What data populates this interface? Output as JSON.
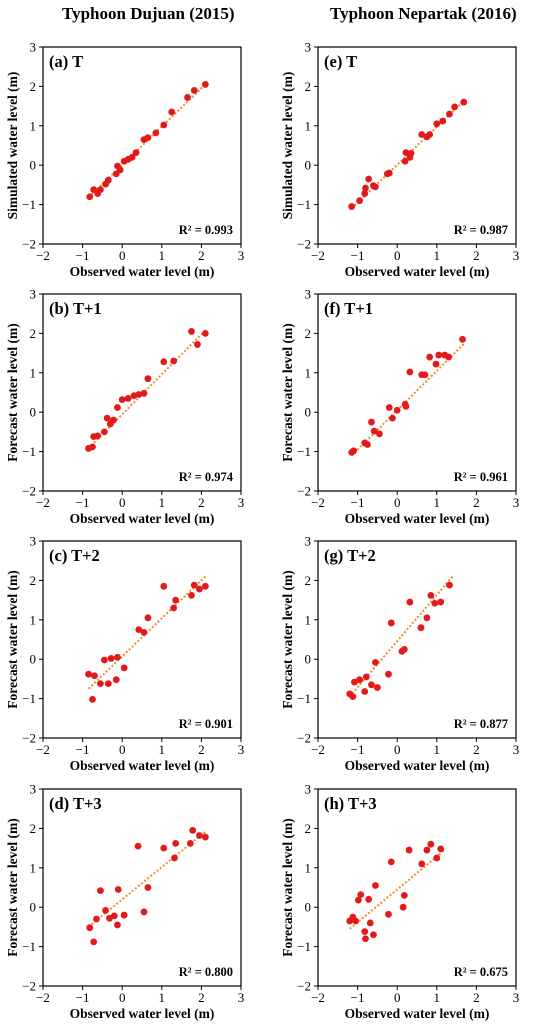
{
  "column_titles": [
    "Typhoon Dujuan (2015)",
    "Typhoon Nepartak (2016)"
  ],
  "style": {
    "point_color": "#e31a1c",
    "fit_color": "#f28c28"
  },
  "chart_data": [
    {
      "type": "scatter",
      "panel": "(a) T",
      "xlabel": "Observed water level (m)",
      "ylabel": "Simulated water level (m)",
      "xlim": [
        -2,
        3
      ],
      "ylim": [
        -2,
        3
      ],
      "xticks": [
        -2,
        -1,
        0,
        1,
        2,
        3
      ],
      "yticks": [
        -2,
        -1,
        0,
        1,
        2,
        3
      ],
      "r2_label": "R² = 0.993",
      "fit": {
        "x": [
          -0.85,
          2.1
        ],
        "y": [
          -0.82,
          2.05
        ]
      },
      "points": [
        [
          -0.82,
          -0.8
        ],
        [
          -0.72,
          -0.62
        ],
        [
          -0.62,
          -0.72
        ],
        [
          -0.55,
          -0.62
        ],
        [
          -0.42,
          -0.48
        ],
        [
          -0.35,
          -0.38
        ],
        [
          -0.15,
          -0.22
        ],
        [
          -0.12,
          -0.02
        ],
        [
          -0.05,
          -0.12
        ],
        [
          0.05,
          0.1
        ],
        [
          0.15,
          0.15
        ],
        [
          0.25,
          0.2
        ],
        [
          0.35,
          0.32
        ],
        [
          0.55,
          0.65
        ],
        [
          0.65,
          0.7
        ],
        [
          0.85,
          0.82
        ],
        [
          1.05,
          1.02
        ],
        [
          1.25,
          1.35
        ],
        [
          1.65,
          1.72
        ],
        [
          1.82,
          1.9
        ],
        [
          2.1,
          2.05
        ]
      ]
    },
    {
      "type": "scatter",
      "panel": "(b) T+1",
      "xlabel": "Observed water level (m)",
      "ylabel": "Forecast water level (m)",
      "xlim": [
        -2,
        3
      ],
      "ylim": [
        -2,
        3
      ],
      "xticks": [
        -2,
        -1,
        0,
        1,
        2,
        3
      ],
      "yticks": [
        -2,
        -1,
        0,
        1,
        2,
        3
      ],
      "r2_label": "R² = 0.974",
      "fit": {
        "x": [
          -0.85,
          2.1
        ],
        "y": [
          -0.92,
          2.08
        ]
      },
      "points": [
        [
          -0.85,
          -0.92
        ],
        [
          -0.75,
          -0.88
        ],
        [
          -0.72,
          -0.62
        ],
        [
          -0.62,
          -0.6
        ],
        [
          -0.45,
          -0.5
        ],
        [
          -0.38,
          -0.15
        ],
        [
          -0.3,
          -0.3
        ],
        [
          -0.22,
          -0.2
        ],
        [
          -0.12,
          0.12
        ],
        [
          0.0,
          0.32
        ],
        [
          0.15,
          0.35
        ],
        [
          0.3,
          0.42
        ],
        [
          0.42,
          0.45
        ],
        [
          0.55,
          0.48
        ],
        [
          0.65,
          0.85
        ],
        [
          1.05,
          1.28
        ],
        [
          1.3,
          1.3
        ],
        [
          1.75,
          2.05
        ],
        [
          1.9,
          1.72
        ],
        [
          2.1,
          2.0
        ]
      ]
    },
    {
      "type": "scatter",
      "panel": "(c) T+2",
      "xlabel": "Observed water level (m)",
      "ylabel": "Forecast water level (m)",
      "xlim": [
        -2,
        3
      ],
      "ylim": [
        -2,
        3
      ],
      "xticks": [
        -2,
        -1,
        0,
        1,
        2,
        3
      ],
      "yticks": [
        -2,
        -1,
        0,
        1,
        2,
        3
      ],
      "r2_label": "R² = 0.901",
      "fit": {
        "x": [
          -0.85,
          2.1
        ],
        "y": [
          -0.75,
          2.1
        ]
      },
      "points": [
        [
          -0.85,
          -0.38
        ],
        [
          -0.75,
          -1.02
        ],
        [
          -0.7,
          -0.42
        ],
        [
          -0.55,
          -0.62
        ],
        [
          -0.45,
          -0.02
        ],
        [
          -0.35,
          -0.62
        ],
        [
          -0.28,
          0.02
        ],
        [
          -0.15,
          -0.52
        ],
        [
          -0.12,
          0.05
        ],
        [
          0.05,
          -0.22
        ],
        [
          0.42,
          0.75
        ],
        [
          0.55,
          0.68
        ],
        [
          0.65,
          1.05
        ],
        [
          1.05,
          1.85
        ],
        [
          1.3,
          1.3
        ],
        [
          1.35,
          1.5
        ],
        [
          1.75,
          1.62
        ],
        [
          1.82,
          1.88
        ],
        [
          1.95,
          1.78
        ],
        [
          2.1,
          1.85
        ]
      ]
    },
    {
      "type": "scatter",
      "panel": "(d) T+3",
      "xlabel": "Observed water level (m)",
      "ylabel": "Forecast water level (m)",
      "xlim": [
        -2,
        3
      ],
      "ylim": [
        -2,
        3
      ],
      "xticks": [
        -2,
        -1,
        0,
        1,
        2,
        3
      ],
      "yticks": [
        -2,
        -1,
        0,
        1,
        2,
        3
      ],
      "r2_label": "R² = 0.800",
      "fit": {
        "x": [
          -0.85,
          2.1
        ],
        "y": [
          -0.5,
          1.92
        ]
      },
      "points": [
        [
          -0.82,
          -0.52
        ],
        [
          -0.72,
          -0.88
        ],
        [
          -0.65,
          -0.3
        ],
        [
          -0.55,
          0.42
        ],
        [
          -0.42,
          -0.08
        ],
        [
          -0.32,
          -0.28
        ],
        [
          -0.2,
          -0.22
        ],
        [
          -0.12,
          -0.45
        ],
        [
          -0.1,
          0.45
        ],
        [
          0.05,
          -0.2
        ],
        [
          0.4,
          1.55
        ],
        [
          0.55,
          -0.12
        ],
        [
          0.65,
          0.5
        ],
        [
          1.05,
          1.5
        ],
        [
          1.32,
          1.25
        ],
        [
          1.35,
          1.62
        ],
        [
          1.72,
          1.62
        ],
        [
          1.78,
          1.95
        ],
        [
          1.95,
          1.82
        ],
        [
          2.1,
          1.78
        ]
      ]
    },
    {
      "type": "scatter",
      "panel": "(e) T",
      "xlabel": "Observed water level (m)",
      "ylabel": "Simulated water level (m)",
      "xlim": [
        -2,
        3
      ],
      "ylim": [
        -2,
        3
      ],
      "xticks": [
        -2,
        -1,
        0,
        1,
        2,
        3
      ],
      "yticks": [
        -2,
        -1,
        0,
        1,
        2,
        3
      ],
      "r2_label": "R² = 0.987",
      "fit": {
        "x": [
          -1.15,
          1.7
        ],
        "y": [
          -1.1,
          1.65
        ]
      },
      "points": [
        [
          -1.15,
          -1.05
        ],
        [
          -0.95,
          -0.9
        ],
        [
          -0.82,
          -0.72
        ],
        [
          -0.8,
          -0.58
        ],
        [
          -0.72,
          -0.35
        ],
        [
          -0.6,
          -0.52
        ],
        [
          -0.55,
          -0.55
        ],
        [
          -0.25,
          -0.22
        ],
        [
          -0.2,
          -0.2
        ],
        [
          0.2,
          0.1
        ],
        [
          0.22,
          0.32
        ],
        [
          0.32,
          0.2
        ],
        [
          0.35,
          0.3
        ],
        [
          0.62,
          0.78
        ],
        [
          0.75,
          0.72
        ],
        [
          0.82,
          0.78
        ],
        [
          1.0,
          1.05
        ],
        [
          1.15,
          1.12
        ],
        [
          1.32,
          1.3
        ],
        [
          1.45,
          1.48
        ],
        [
          1.68,
          1.6
        ]
      ]
    },
    {
      "type": "scatter",
      "panel": "(f) T+1",
      "xlabel": "Observed water level (m)",
      "ylabel": "Forecast water level (m)",
      "xlim": [
        -2,
        3
      ],
      "ylim": [
        -2,
        3
      ],
      "xticks": [
        -2,
        -1,
        0,
        1,
        2,
        3
      ],
      "yticks": [
        -2,
        -1,
        0,
        1,
        2,
        3
      ],
      "r2_label": "R² = 0.961",
      "fit": {
        "x": [
          -1.15,
          1.7
        ],
        "y": [
          -1.1,
          1.75
        ]
      },
      "points": [
        [
          -1.15,
          -1.02
        ],
        [
          -1.1,
          -0.98
        ],
        [
          -0.82,
          -0.78
        ],
        [
          -0.75,
          -0.82
        ],
        [
          -0.65,
          -0.25
        ],
        [
          -0.58,
          -0.48
        ],
        [
          -0.45,
          -0.55
        ],
        [
          -0.2,
          0.12
        ],
        [
          -0.12,
          -0.15
        ],
        [
          0.0,
          0.05
        ],
        [
          0.2,
          0.2
        ],
        [
          0.22,
          0.15
        ],
        [
          0.32,
          1.02
        ],
        [
          0.62,
          0.95
        ],
        [
          0.7,
          0.95
        ],
        [
          0.82,
          1.4
        ],
        [
          0.98,
          1.22
        ],
        [
          1.05,
          1.45
        ],
        [
          1.2,
          1.45
        ],
        [
          1.3,
          1.4
        ],
        [
          1.65,
          1.85
        ]
      ]
    },
    {
      "type": "scatter",
      "panel": "(g) T+2",
      "xlabel": "Observed water level (m)",
      "ylabel": "Forecast water level (m)",
      "xlim": [
        -2,
        3
      ],
      "ylim": [
        -2,
        3
      ],
      "xticks": [
        -2,
        -1,
        0,
        1,
        2,
        3
      ],
      "yticks": [
        -2,
        -1,
        0,
        1,
        2,
        3
      ],
      "r2_label": "R² = 0.877",
      "fit": {
        "x": [
          -1.2,
          1.4
        ],
        "y": [
          -0.95,
          2.1
        ]
      },
      "points": [
        [
          -1.2,
          -0.88
        ],
        [
          -1.12,
          -0.95
        ],
        [
          -1.08,
          -0.58
        ],
        [
          -0.95,
          -0.52
        ],
        [
          -0.82,
          -0.82
        ],
        [
          -0.78,
          -0.45
        ],
        [
          -0.65,
          -0.65
        ],
        [
          -0.55,
          -0.08
        ],
        [
          -0.5,
          -0.72
        ],
        [
          -0.22,
          -0.38
        ],
        [
          -0.15,
          0.92
        ],
        [
          0.12,
          0.2
        ],
        [
          0.18,
          0.25
        ],
        [
          0.32,
          1.45
        ],
        [
          0.6,
          0.8
        ],
        [
          0.75,
          1.05
        ],
        [
          0.85,
          1.62
        ],
        [
          0.95,
          1.42
        ],
        [
          1.1,
          1.45
        ],
        [
          1.32,
          1.88
        ]
      ]
    },
    {
      "type": "scatter",
      "panel": "(h) T+3",
      "xlabel": "Observed water level (m)",
      "ylabel": "Forecast water level (m)",
      "xlim": [
        -2,
        3
      ],
      "ylim": [
        -2,
        3
      ],
      "xticks": [
        -2,
        -1,
        0,
        1,
        2,
        3
      ],
      "yticks": [
        -2,
        -1,
        0,
        1,
        2,
        3
      ],
      "r2_label": "R² = 0.675",
      "fit": {
        "x": [
          -1.2,
          1.2
        ],
        "y": [
          -0.55,
          1.45
        ]
      },
      "points": [
        [
          -1.2,
          -0.35
        ],
        [
          -1.12,
          -0.25
        ],
        [
          -1.05,
          -0.35
        ],
        [
          -0.98,
          0.18
        ],
        [
          -0.92,
          0.32
        ],
        [
          -0.82,
          -0.62
        ],
        [
          -0.8,
          -0.8
        ],
        [
          -0.72,
          0.2
        ],
        [
          -0.68,
          -0.4
        ],
        [
          -0.6,
          -0.7
        ],
        [
          -0.55,
          0.55
        ],
        [
          -0.22,
          -0.18
        ],
        [
          -0.15,
          1.15
        ],
        [
          0.15,
          0.0
        ],
        [
          0.18,
          0.3
        ],
        [
          0.3,
          1.45
        ],
        [
          0.62,
          1.1
        ],
        [
          0.75,
          1.45
        ],
        [
          0.85,
          1.6
        ],
        [
          1.0,
          1.25
        ],
        [
          1.1,
          1.48
        ]
      ]
    }
  ]
}
